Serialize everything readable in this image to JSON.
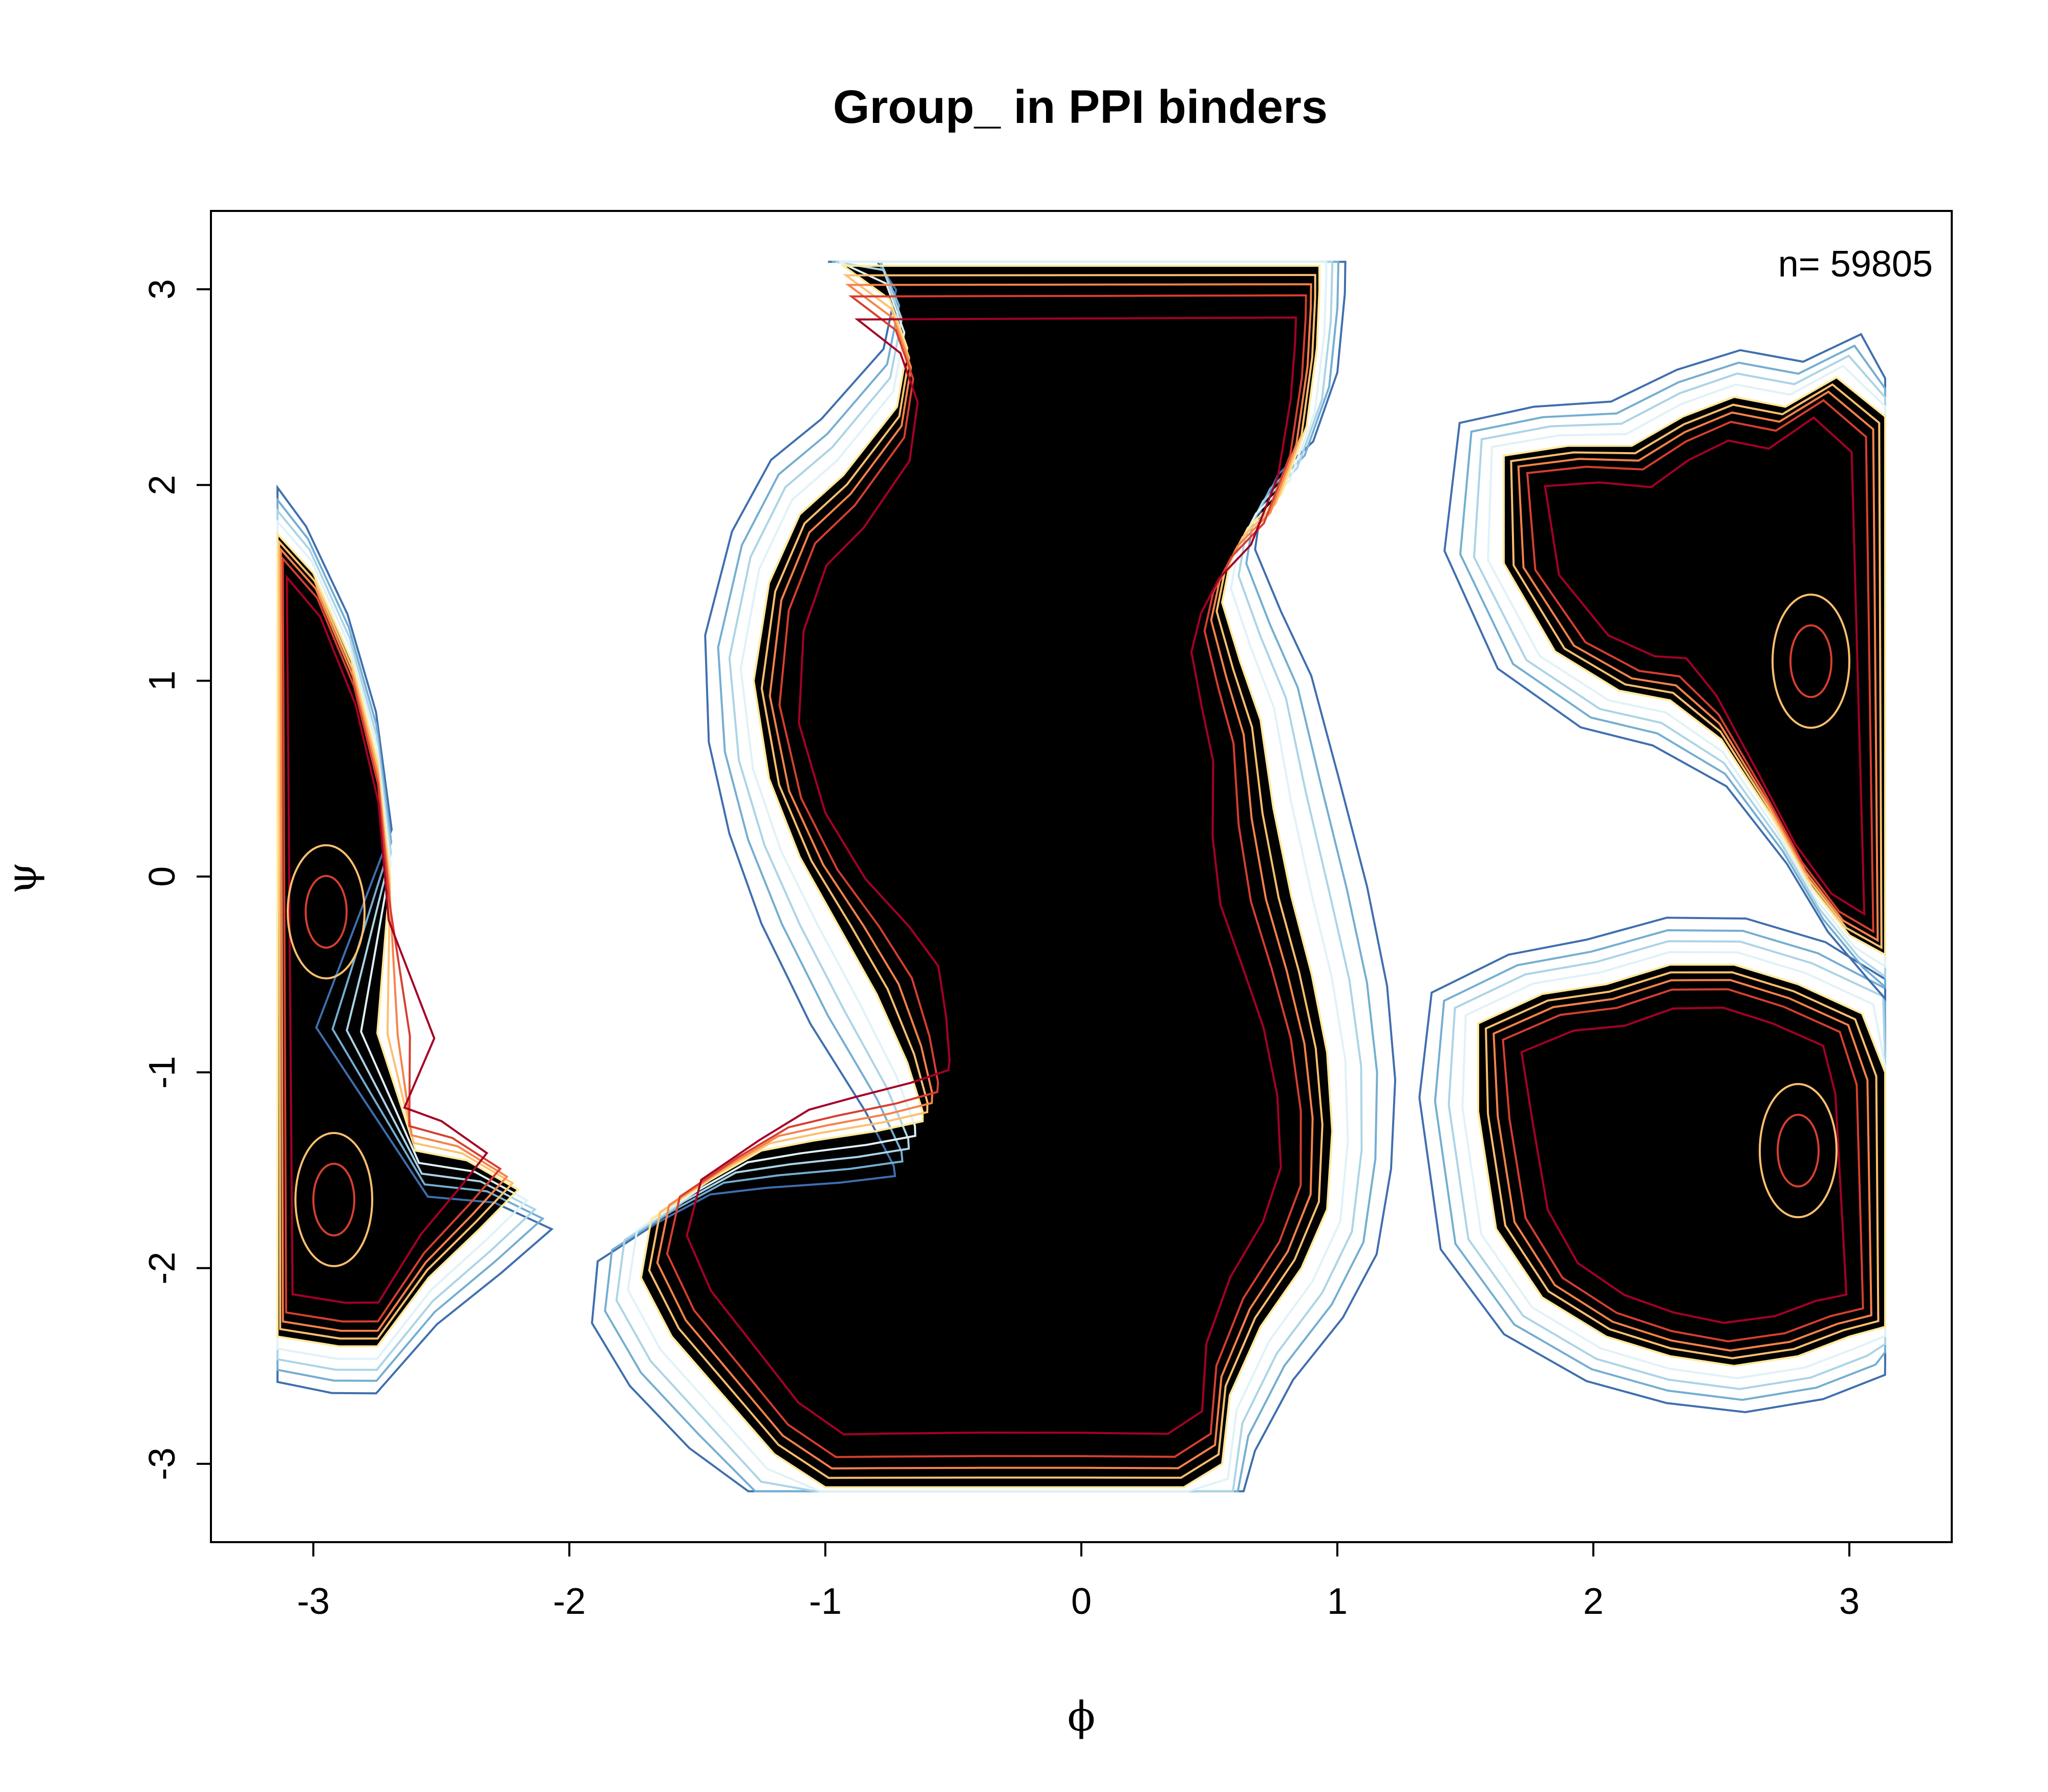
{
  "chart_data": {
    "type": "heatmap",
    "title": "Group_  in PPI binders",
    "xlabel": "ϕ",
    "ylabel": "ψ",
    "annotation": "n= 59805",
    "xlim": [
      -3.4,
      3.4
    ],
    "ylim": [
      -3.4,
      3.4
    ],
    "x_ticks": [
      -3,
      -2,
      -1,
      0,
      1,
      2,
      3
    ],
    "y_ticks": [
      -3,
      -2,
      -1,
      0,
      1,
      2,
      3
    ],
    "x_tick_labels": [
      "-3",
      "-2",
      "-1",
      "0",
      "1",
      "2",
      "3"
    ],
    "y_tick_labels": [
      "-3",
      "-2",
      "-1",
      "0",
      "1",
      "2",
      "3"
    ],
    "grid": false,
    "legend": "none",
    "contour_colors": [
      "#3f6fae",
      "#74aed1",
      "#abd4e6",
      "#e0f2f7",
      "#fee99c",
      "#fdbf6f",
      "#f6824a",
      "#d63f2f",
      "#a50026"
    ],
    "regions": [
      {
        "name": "beta-region",
        "x": [
          -0.93,
          -0.75,
          -0.68,
          -0.72,
          -0.93,
          -1.1,
          -1.22,
          -1.28,
          -1.22,
          -1.1,
          -0.95,
          -0.8,
          -0.68,
          -0.62,
          -0.62,
          -0.8,
          -1.05,
          -1.25,
          -1.45,
          -1.68,
          -1.72,
          -1.6,
          -1.4,
          -1.2,
          -1.0,
          -0.8,
          -0.4,
          0.0,
          0.4,
          0.55,
          0.58,
          0.7,
          0.86,
          0.96,
          0.98,
          0.96,
          0.9,
          0.82,
          0.75,
          0.7,
          0.62,
          0.55,
          0.58,
          0.65,
          0.78,
          0.88,
          0.92,
          0.93,
          0.93
        ],
        "y": [
          3.12,
          2.95,
          2.7,
          2.4,
          2.05,
          1.85,
          1.5,
          1.0,
          0.5,
          0.1,
          -0.25,
          -0.6,
          -0.95,
          -1.2,
          -1.25,
          -1.3,
          -1.35,
          -1.4,
          -1.55,
          -1.75,
          -2.05,
          -2.35,
          -2.65,
          -2.95,
          -3.12,
          -3.12,
          -3.12,
          -3.12,
          -3.12,
          -3.0,
          -2.65,
          -2.3,
          -2.0,
          -1.7,
          -1.3,
          -0.9,
          -0.5,
          -0.1,
          0.35,
          0.8,
          1.1,
          1.4,
          1.6,
          1.78,
          1.95,
          2.3,
          2.7,
          3.0,
          3.12
        ]
      },
      {
        "name": "right-lower-region",
        "x": [
          1.55,
          1.8,
          2.05,
          2.3,
          2.55,
          2.8,
          3.05,
          3.14,
          3.14,
          3.0,
          2.8,
          2.55,
          2.3,
          2.05,
          1.8,
          1.62,
          1.55
        ],
        "y": [
          -0.75,
          -0.6,
          -0.55,
          -0.45,
          -0.45,
          -0.55,
          -0.7,
          -1.0,
          -2.3,
          -2.35,
          -2.45,
          -2.5,
          -2.45,
          -2.35,
          -2.15,
          -1.8,
          -1.2
        ]
      },
      {
        "name": "right-upper-region",
        "x": [
          1.65,
          1.9,
          2.15,
          2.35,
          2.55,
          2.75,
          2.95,
          3.14,
          3.14,
          3.0,
          2.85,
          2.7,
          2.5,
          2.3,
          2.1,
          1.85,
          1.65
        ],
        "y": [
          2.15,
          2.2,
          2.2,
          2.35,
          2.45,
          2.4,
          2.55,
          2.35,
          -0.4,
          -0.3,
          -0.05,
          0.3,
          0.7,
          0.9,
          0.95,
          1.15,
          1.6
        ]
      },
      {
        "name": "left-edge-region",
        "x": [
          -3.14,
          -3.0,
          -2.85,
          -2.75,
          -2.7,
          -2.75,
          -2.6,
          -2.4,
          -2.2,
          -2.35,
          -2.55,
          -2.75,
          -2.9,
          -3.14
        ],
        "y": [
          1.75,
          1.55,
          1.1,
          0.6,
          0.0,
          -0.8,
          -1.4,
          -1.45,
          -1.6,
          -1.8,
          -2.05,
          -2.4,
          -2.4,
          -2.35
        ]
      }
    ],
    "contour_levels": [
      {
        "level": 1,
        "region": "beta-region",
        "offset": 0.3
      },
      {
        "level": 2,
        "region": "beta-region",
        "offset": 0.22
      },
      {
        "level": 3,
        "region": "beta-region",
        "offset": 0.15
      },
      {
        "level": 4,
        "region": "beta-region",
        "offset": 0.08
      },
      {
        "level": 5,
        "region": "beta-region",
        "offset": 0.0
      },
      {
        "level": 6,
        "region": "beta-region",
        "offset": -0.05
      },
      {
        "level": 7,
        "region": "beta-region",
        "offset": -0.1
      },
      {
        "level": 8,
        "region": "beta-region",
        "offset": -0.16
      },
      {
        "level": 9,
        "region": "beta-region",
        "offset": -0.28
      }
    ],
    "peaks": [
      {
        "x": -2.95,
        "y": -0.18
      },
      {
        "x": -2.92,
        "y": -1.65
      },
      {
        "x": 2.85,
        "y": 1.1
      },
      {
        "x": 2.8,
        "y": -1.4
      }
    ]
  }
}
